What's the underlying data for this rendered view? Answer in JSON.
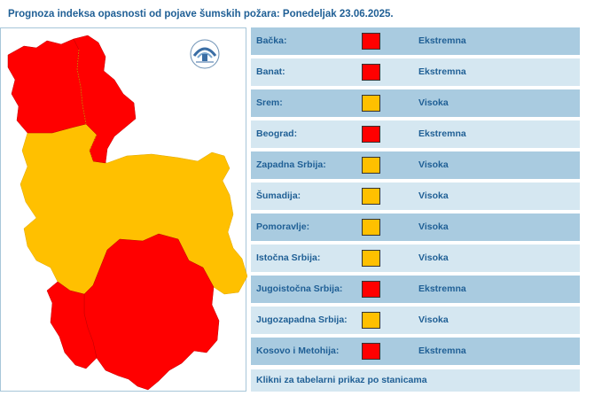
{
  "header": {
    "title": "Prognoza indeksa opasnosti od pojave šumskih požara:  Ponedeljak 23.06.2025."
  },
  "colors": {
    "extreme": "#ff0000",
    "high": "#ffc000",
    "row_dark": "#a9cbe0",
    "row_light": "#d5e7f1",
    "text": "#1f5f95"
  },
  "map": {
    "logo_icon": "rhmz-logo-icon"
  },
  "regions": [
    {
      "name": "Bačka:",
      "level": "Ekstremna",
      "color": "#ff0000"
    },
    {
      "name": "Banat:",
      "level": "Ekstremna",
      "color": "#ff0000"
    },
    {
      "name": "Srem:",
      "level": "Visoka",
      "color": "#ffc000"
    },
    {
      "name": "Beograd:",
      "level": "Ekstremna",
      "color": "#ff0000"
    },
    {
      "name": "Zapadna Srbija:",
      "level": "Visoka",
      "color": "#ffc000"
    },
    {
      "name": "Šumadija:",
      "level": "Visoka",
      "color": "#ffc000"
    },
    {
      "name": "Pomoravlje:",
      "level": "Visoka",
      "color": "#ffc000"
    },
    {
      "name": "Istočna Srbija:",
      "level": "Visoka",
      "color": "#ffc000"
    },
    {
      "name": "Jugoistočna Srbija:",
      "level": "Ekstremna",
      "color": "#ff0000"
    },
    {
      "name": "Jugozapadna Srbija:",
      "level": "Visoka",
      "color": "#ffc000"
    },
    {
      "name": "Kosovo i Metohija:",
      "level": "Ekstremna",
      "color": "#ff0000"
    }
  ],
  "footer": {
    "link_label": "Klikni za tabelarni prikaz po stanicama"
  }
}
